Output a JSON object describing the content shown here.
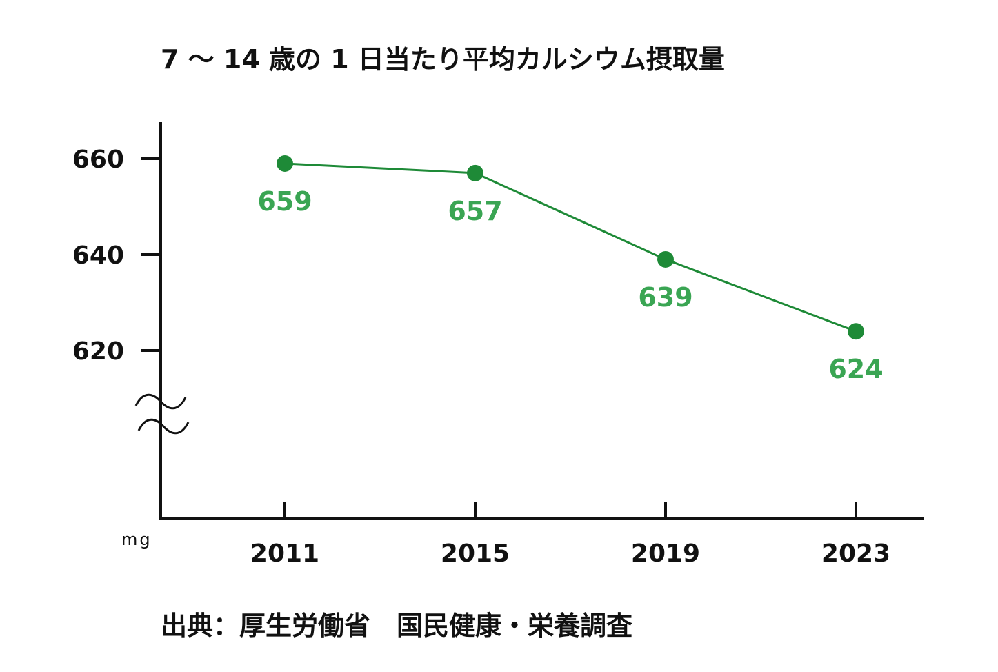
{
  "chart_data": {
    "type": "line",
    "title": "7 〜 14 歳の 1 日当たり平均カルシウム摂取量",
    "unit": "mg",
    "source": "出典：厚生労働省　国民健康・栄養調査",
    "categories": [
      "2011",
      "2015",
      "2019",
      "2023"
    ],
    "series": [
      {
        "values": [
          659,
          657,
          639,
          624
        ]
      }
    ],
    "data_labels": [
      "659",
      "657",
      "639",
      "624"
    ],
    "yticks": [
      "620",
      "640",
      "660"
    ],
    "ytick_values": [
      620,
      640,
      660
    ],
    "axis_break": true,
    "line_color": "#1e8a37",
    "label_color": "#3aa553",
    "axis_color": "#111111"
  }
}
